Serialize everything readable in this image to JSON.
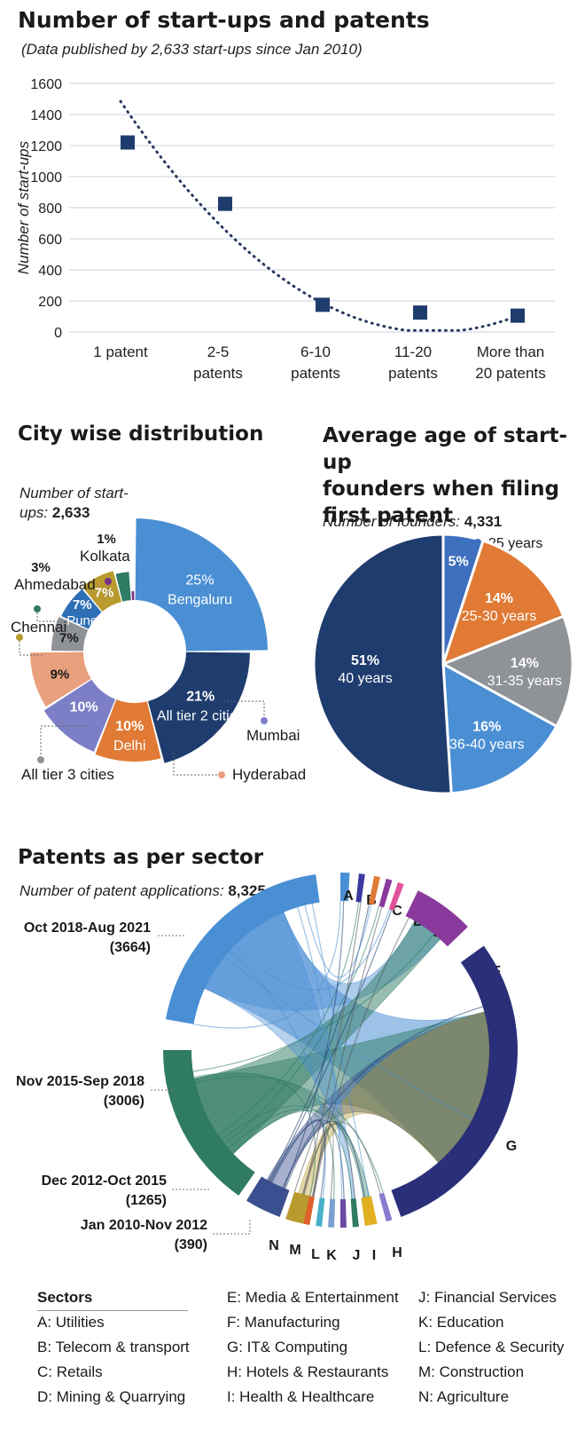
{
  "colors": {
    "navy": "#1f3c6e",
    "blue": "#4a8fd4",
    "orange": "#e07a35",
    "gray": "#8f9296",
    "teal": "#2f7b63",
    "gold": "#b89a2e",
    "purple": "#8a3a9c",
    "peach": "#e8a07d",
    "lavender": "#7c7fc6"
  },
  "section1": {
    "title": "Number of start-ups and patents",
    "subtitle": "(Data published by 2,633 start-ups since Jan 2010)"
  },
  "chart_data": [
    {
      "type": "scatter",
      "title": "Number of start-ups and patents",
      "subtitle": "(Data published by 2,633 start-ups since Jan 2010)",
      "ylabel": "Number of start-ups",
      "xlabel": "",
      "ylim": [
        0,
        1600
      ],
      "yticks": [
        0,
        200,
        400,
        600,
        800,
        1000,
        1200,
        1400,
        1600
      ],
      "grid": true,
      "trendline": "polynomial (dotted)",
      "categories": [
        "1 patent",
        "2-5 patents",
        "6-10 patents",
        "11-20 patents",
        "More than 20 patents"
      ],
      "category_lines": [
        [
          "1 patent"
        ],
        [
          "2-5",
          "patents"
        ],
        [
          "6-10",
          "patents"
        ],
        [
          "11-20",
          "patents"
        ],
        [
          "More than",
          "20 patents"
        ]
      ],
      "values": [
        1220,
        825,
        175,
        125,
        105
      ]
    },
    {
      "type": "pie",
      "variant": "donut",
      "title": "City wise distribution",
      "note_label": "Number of start-ups:",
      "note_value": "2,633",
      "slices": [
        {
          "label": "Bengaluru",
          "pct_text": "25%",
          "value": 25,
          "color": "#4a8fd4"
        },
        {
          "label": "All tier 2 cities",
          "pct_text": "21%",
          "value": 21,
          "color": "#1f3c6e"
        },
        {
          "label": "Delhi",
          "pct_text": "10%",
          "value": 10,
          "color": "#e07a35"
        },
        {
          "label": "Mumbai",
          "pct_text": "10%",
          "value": 10,
          "color": "#7c7fc6"
        },
        {
          "label": "Hyderabad",
          "pct_text": "9%",
          "value": 9,
          "color": "#e8a07d"
        },
        {
          "label": "All tier 3 cities",
          "pct_text": "7%",
          "value": 7,
          "color": "#8f9296"
        },
        {
          "label": "Pune",
          "pct_text": "7%",
          "value": 7,
          "color": "#2f6fb5"
        },
        {
          "label": "Chennai",
          "pct_text": "7%",
          "value": 7,
          "color": "#b89a2e"
        },
        {
          "label": "Ahmedabad",
          "pct_text": "3%",
          "value": 3,
          "color": "#2f7b63"
        },
        {
          "label": "Kolkata",
          "pct_text": "1%",
          "value": 1,
          "color": "#7a2f86"
        }
      ]
    },
    {
      "type": "pie",
      "title": "Average age of start-up founders when filing first patent",
      "title_lines": [
        "Average age of start-up",
        "founders when filing",
        "first patent"
      ],
      "note_label": "Number of founders:",
      "note_value": "4,331",
      "slices": [
        {
          "label": "25 years",
          "pct_text": "5%",
          "value": 5,
          "color": "#3f6fbf"
        },
        {
          "label": "25-30 years",
          "pct_text": "14%",
          "value": 14,
          "color": "#e07a35"
        },
        {
          "label": "31-35 years",
          "pct_text": "14%",
          "value": 14,
          "color": "#8f9296"
        },
        {
          "label": "36-40 years",
          "pct_text": "16%",
          "value": 16,
          "color": "#4a8fd4"
        },
        {
          "label": "40 years",
          "pct_text": "51%",
          "value": 51,
          "color": "#1f3c6e"
        }
      ]
    },
    {
      "type": "chord",
      "title": "Patents as per sector",
      "note_label": "Number of patent applications:",
      "note_value": "8,325",
      "periods": [
        {
          "label": "Oct 2018-Aug 2021",
          "count": "(3664)",
          "value": 3664,
          "color": "#4a8fd4"
        },
        {
          "label": "Nov 2015-Sep 2018",
          "count": "(3006)",
          "value": 3006,
          "color": "#2f7b63"
        },
        {
          "label": "Dec 2012-Oct 2015",
          "count": "(1265)",
          "value": 1265,
          "color": "#3a4f8f"
        },
        {
          "label": "Jan 2010-Nov 2012",
          "count": "(390)",
          "value": 390,
          "color": "#b89a2e"
        }
      ],
      "sectors": [
        "A",
        "B",
        "C",
        "D",
        "E",
        "F",
        "G",
        "H",
        "I",
        "J",
        "K",
        "L",
        "M",
        "N"
      ]
    }
  ],
  "section4": {
    "legend_title": "Sectors",
    "legend": [
      "A: Utilities",
      "B: Telecom & transport",
      "C: Retails",
      "D: Mining & Quarrying",
      "E: Media & Entertainment",
      "F: Manufacturing",
      "G: IT& Computing",
      "H: Hotels & Restaurants",
      "I: Health & Healthcare",
      "J: Financial Services",
      "K: Education",
      "L: Defence & Security",
      "M: Construction",
      "N: Agriculture"
    ]
  }
}
